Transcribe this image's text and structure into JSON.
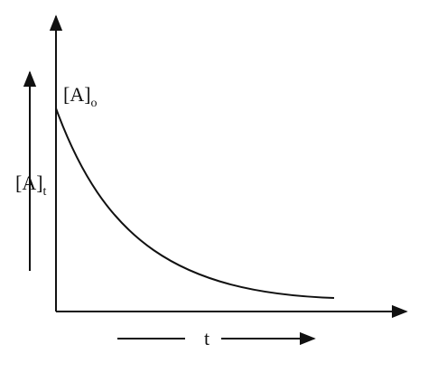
{
  "labels": {
    "initial": {
      "main": "[A]",
      "sub": "o"
    },
    "concentration": {
      "main": "[A]",
      "sub": "t"
    },
    "time": "t"
  }
}
